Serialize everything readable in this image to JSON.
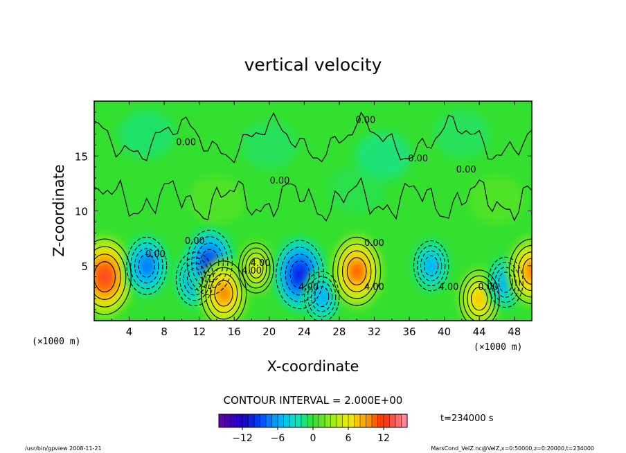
{
  "chart_data": {
    "type": "heatmap",
    "title": "vertical velocity",
    "xlabel": "X-coordinate",
    "ylabel": "Z-coordinate",
    "x_unit": "(×1000 m)",
    "y_unit": "(×1000 m)",
    "xlim": [
      0,
      50
    ],
    "ylim": [
      0,
      20
    ],
    "x_ticks": [
      4,
      8,
      12,
      16,
      20,
      24,
      28,
      32,
      36,
      40,
      44,
      48
    ],
    "y_ticks": [
      5,
      10,
      15
    ],
    "contour_interval_text": "CONTOUR INTERVAL = 2.000E+00",
    "contour_labels": [
      {
        "text": "0.00",
        "x": 31.0,
        "y": 18.0
      },
      {
        "text": "0.00",
        "x": 10.5,
        "y": 16.0
      },
      {
        "text": "0.00",
        "x": 37.0,
        "y": 14.5
      },
      {
        "text": "0.00",
        "x": 42.5,
        "y": 13.5
      },
      {
        "text": "0.00",
        "x": 21.2,
        "y": 12.5
      },
      {
        "text": "0.00",
        "x": 11.5,
        "y": 7.0
      },
      {
        "text": "0.00",
        "x": 7.0,
        "y": 5.8
      },
      {
        "text": "0.00",
        "x": 32.0,
        "y": 6.8
      },
      {
        "text": "4.00",
        "x": 19.0,
        "y": 5.0
      },
      {
        "text": "4.00",
        "x": 18.0,
        "y": 4.3
      },
      {
        "text": "4.00",
        "x": 24.5,
        "y": 2.8
      },
      {
        "text": "4.00",
        "x": 32.0,
        "y": 2.8
      },
      {
        "text": "4.00",
        "x": 40.5,
        "y": 2.8
      },
      {
        "text": "0.00",
        "x": 45.0,
        "y": 2.8
      }
    ],
    "features": [
      {
        "kind": "updraft",
        "x": 1.2,
        "z": 4.0,
        "peak": 13
      },
      {
        "kind": "downdraft",
        "x": 6.0,
        "z": 5.0,
        "peak": -8
      },
      {
        "kind": "downdraft",
        "x": 11.5,
        "z": 3.8,
        "peak": -7
      },
      {
        "kind": "downdraft",
        "x": 13.2,
        "z": 5.3,
        "peak": -10
      },
      {
        "kind": "updraft",
        "x": 14.8,
        "z": 2.5,
        "peak": 10
      },
      {
        "kind": "updraft",
        "x": 18.5,
        "z": 4.8,
        "peak": 6
      },
      {
        "kind": "downdraft",
        "x": 23.5,
        "z": 4.2,
        "peak": -11
      },
      {
        "kind": "downdraft",
        "x": 26.0,
        "z": 2.2,
        "peak": -6
      },
      {
        "kind": "updraft",
        "x": 30.0,
        "z": 4.5,
        "peak": 11
      },
      {
        "kind": "downdraft",
        "x": 38.5,
        "z": 5.0,
        "peak": -6
      },
      {
        "kind": "updraft",
        "x": 44.0,
        "z": 2.0,
        "peak": 8
      },
      {
        "kind": "downdraft",
        "x": 47.0,
        "z": 3.5,
        "peak": -6
      },
      {
        "kind": "updraft",
        "x": 50.0,
        "z": 4.5,
        "peak": 10
      }
    ],
    "colorbar": {
      "range": [
        -16,
        16
      ],
      "tick_labels": [
        "−12",
        "−6",
        "0",
        "6",
        "12"
      ],
      "tick_values": [
        -12,
        -6,
        0,
        6,
        12
      ]
    },
    "time_label": "t=234000  s"
  },
  "footer": {
    "left": "/usr/bin/gpview   2008-11-21",
    "right": "MarsCond_VelZ.nc@VelZ,x=0:50000,z=0:20000,t=234000"
  },
  "colors": {
    "background_field": "#34e02f",
    "positive_max": "#ff2a00",
    "negative_max": "#2a00d0",
    "contour": "#000000"
  }
}
